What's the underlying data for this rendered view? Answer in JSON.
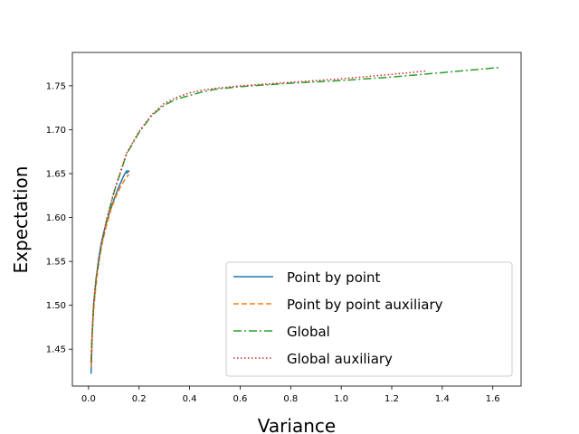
{
  "chart_data": {
    "type": "line",
    "title": "",
    "xlabel": "Variance",
    "ylabel": "Expectation",
    "xlim": [
      -0.064,
      1.712
    ],
    "ylim": [
      1.408,
      1.788
    ],
    "xticks": [
      0.0,
      0.2,
      0.4,
      0.6,
      0.8,
      1.0,
      1.2,
      1.4,
      1.6
    ],
    "xtick_labels": [
      "0.0",
      "0.2",
      "0.4",
      "0.6",
      "0.8",
      "1.0",
      "1.2",
      "1.4",
      "1.6"
    ],
    "yticks": [
      1.45,
      1.5,
      1.55,
      1.6,
      1.65,
      1.7,
      1.75
    ],
    "ytick_labels": [
      "1.45",
      "1.50",
      "1.55",
      "1.60",
      "1.65",
      "1.70",
      "1.75"
    ],
    "grid": false,
    "legend_position": "lower-right",
    "series": [
      {
        "name": "Point by point",
        "color": "#1f77b4",
        "dash": "solid",
        "x": [
          0.01,
          0.012,
          0.015,
          0.02,
          0.03,
          0.04,
          0.05,
          0.06,
          0.08,
          0.1,
          0.12,
          0.14,
          0.15,
          0.16,
          0.15
        ],
        "y": [
          1.422,
          1.44,
          1.47,
          1.5,
          1.53,
          1.553,
          1.57,
          1.583,
          1.603,
          1.62,
          1.635,
          1.648,
          1.653,
          1.653,
          1.65
        ]
      },
      {
        "name": "Point by point auxiliary",
        "color": "#ff7f0e",
        "dash": "dashed",
        "x": [
          0.01,
          0.013,
          0.018,
          0.025,
          0.035,
          0.045,
          0.055,
          0.07,
          0.09,
          0.11,
          0.13,
          0.15,
          0.16
        ],
        "y": [
          1.43,
          1.455,
          1.485,
          1.51,
          1.537,
          1.557,
          1.572,
          1.59,
          1.61,
          1.625,
          1.637,
          1.646,
          1.649
        ]
      },
      {
        "name": "Global",
        "color": "#2ca02c",
        "dash": "dashdot",
        "x": [
          0.01,
          0.013,
          0.02,
          0.03,
          0.05,
          0.07,
          0.1,
          0.15,
          0.2,
          0.25,
          0.3,
          0.35,
          0.4,
          0.45,
          0.5,
          0.6,
          0.8,
          1.0,
          1.2,
          1.4,
          1.63
        ],
        "y": [
          1.435,
          1.46,
          1.5,
          1.53,
          1.567,
          1.595,
          1.628,
          1.672,
          1.697,
          1.716,
          1.728,
          1.735,
          1.739,
          1.743,
          1.746,
          1.749,
          1.753,
          1.756,
          1.76,
          1.765,
          1.771
        ]
      },
      {
        "name": "Global auxiliary",
        "color": "#d62728",
        "dash": "dotted",
        "x": [
          0.01,
          0.013,
          0.02,
          0.03,
          0.05,
          0.07,
          0.1,
          0.15,
          0.2,
          0.25,
          0.3,
          0.35,
          0.4,
          0.45,
          0.5,
          0.6,
          0.8,
          1.0,
          1.2,
          1.34
        ],
        "y": [
          1.435,
          1.462,
          1.502,
          1.532,
          1.568,
          1.596,
          1.629,
          1.673,
          1.698,
          1.717,
          1.73,
          1.737,
          1.742,
          1.745,
          1.747,
          1.75,
          1.754,
          1.758,
          1.763,
          1.767
        ]
      }
    ]
  }
}
